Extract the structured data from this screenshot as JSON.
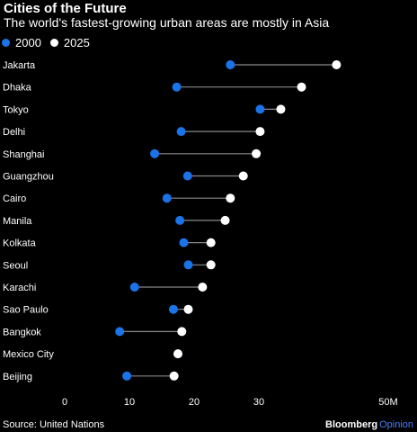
{
  "title": "Cities of the Future",
  "subtitle": "The world's fastest-growing urban areas are mostly in Asia",
  "legend": [
    {
      "label": "2000",
      "color": "#1a73e8"
    },
    {
      "label": "2025",
      "color": "#ffffff"
    }
  ],
  "source": "Source: United Nations",
  "brand": {
    "name": "Bloomberg",
    "sub": "Opinion",
    "sub_color": "#4a7dff"
  },
  "colors": {
    "series_2000": "#1a73e8",
    "series_2025": "#ffffff",
    "connector": "#888888",
    "background": "#000000"
  },
  "chart_data": {
    "type": "dumbbell",
    "title": "Cities of the Future",
    "subtitle": "The world's fastest-growing urban areas are mostly in Asia",
    "xlabel": "",
    "ylabel": "",
    "xlim": [
      0,
      50
    ],
    "x_ticks": [
      0,
      10,
      20,
      30,
      50
    ],
    "x_tick_labels": [
      "0",
      "10",
      "20",
      "30",
      "50M"
    ],
    "categories": [
      "Jakarta",
      "Dhaka",
      "Tokyo",
      "Delhi",
      "Shanghai",
      "Guangzhou",
      "Cairo",
      "Manila",
      "Kolkata",
      "Seoul",
      "Karachi",
      "Sao Paulo",
      "Bangkok",
      "Mexico City",
      "Beijing"
    ],
    "series": [
      {
        "name": "2000",
        "values": [
          25.6,
          17.3,
          30.2,
          18.0,
          13.9,
          19.0,
          15.8,
          17.8,
          18.4,
          19.1,
          10.8,
          16.8,
          8.5,
          17.5,
          9.6
        ]
      },
      {
        "name": "2025",
        "values": [
          42.0,
          36.6,
          33.4,
          30.2,
          29.6,
          27.6,
          25.6,
          24.8,
          22.6,
          22.6,
          21.3,
          19.1,
          18.1,
          17.5,
          16.9
        ]
      }
    ],
    "grid": false,
    "legend_position": "top-left"
  }
}
